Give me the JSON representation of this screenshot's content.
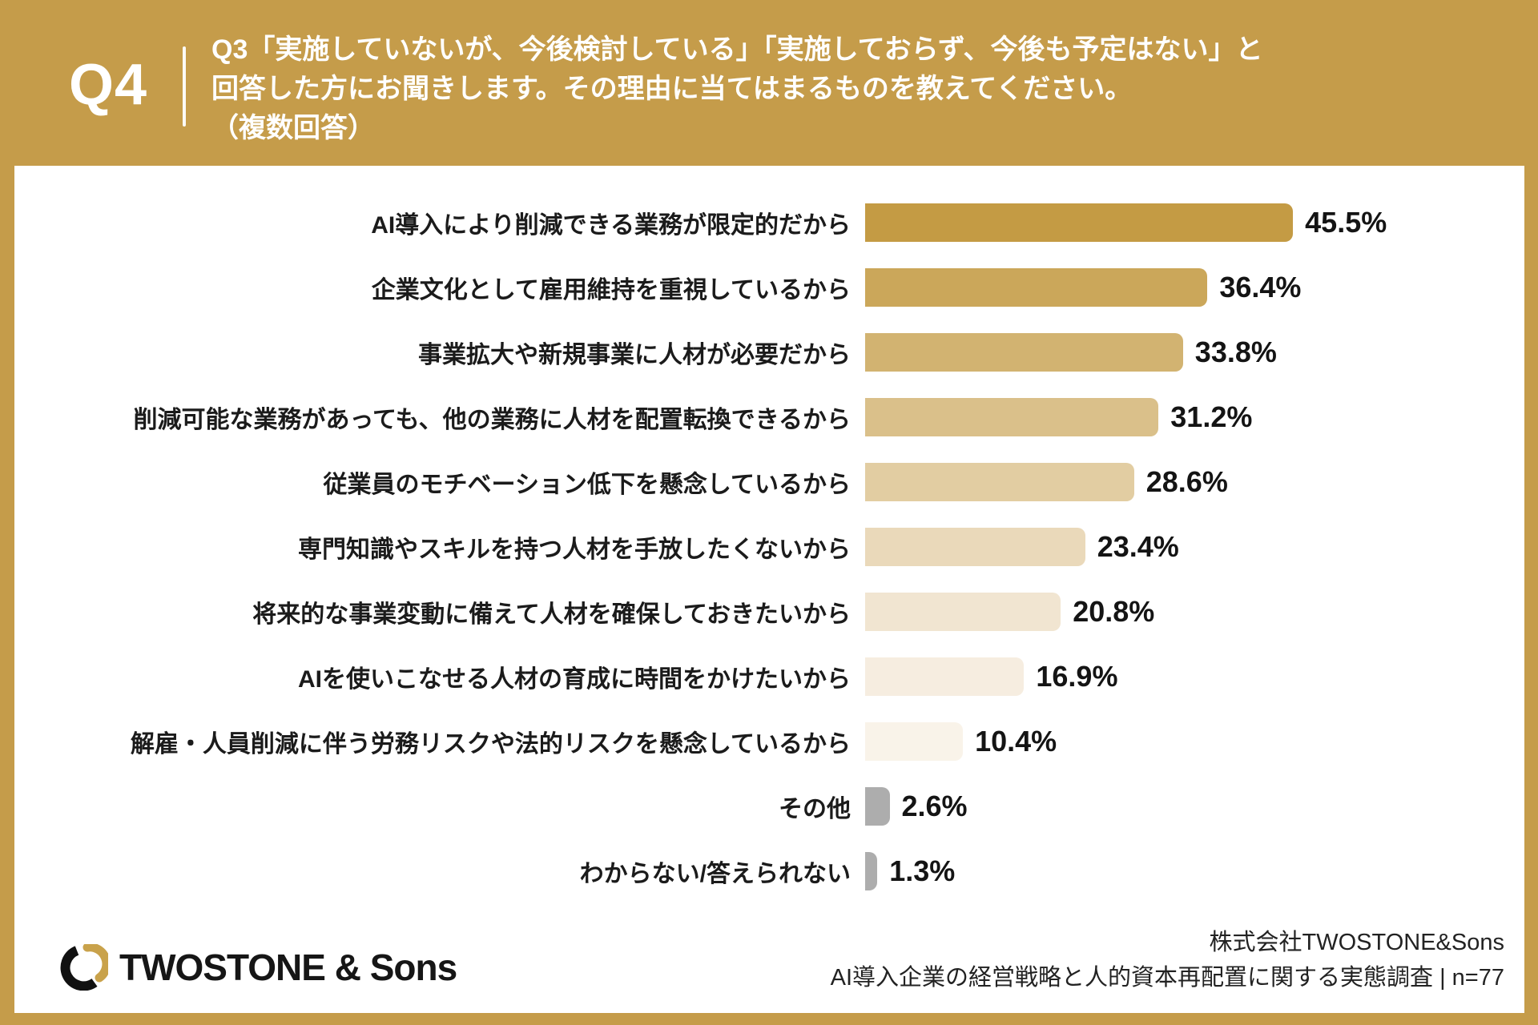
{
  "header": {
    "question_number": "Q4",
    "question_line1": "Q3「実施していないが、今後検討している」「実施しておらず、今後も予定はない」と",
    "question_line2": "回答した方にお聞きします。その理由に当てはまるものを教えてください。",
    "question_line3": "（複数回答）"
  },
  "chart_data": {
    "type": "bar",
    "orientation": "horizontal",
    "title": "Q3「実施していないが、今後検討している」「実施しておらず、今後も予定はない」と回答した方にお聞きします。その理由に当てはまるものを教えてください。（複数回答）",
    "unit": "%",
    "xlim": [
      0,
      70
    ],
    "grid": false,
    "legend": "none",
    "categories": [
      "AI導入により削減できる業務が限定的だから",
      "企業文化として雇用維持を重視しているから",
      "事業拡大や新規事業に人材が必要だから",
      "削減可能な業務があっても、他の業務に人材を配置転換できるから",
      "従業員のモチベーション低下を懸念しているから",
      "専門知識やスキルを持つ人材を手放したくないから",
      "将来的な事業変動に備えて人材を確保しておきたいから",
      "AIを使いこなせる人材の育成に時間をかけたいから",
      "解雇・人員削減に伴う労務リスクや法的リスクを懸念しているから",
      "その他",
      "わからない/答えられない"
    ],
    "values": [
      45.5,
      36.4,
      33.8,
      31.2,
      28.6,
      23.4,
      20.8,
      16.9,
      10.4,
      2.6,
      1.3
    ],
    "value_labels": [
      "45.5%",
      "36.4%",
      "33.8%",
      "31.2%",
      "28.6%",
      "23.4%",
      "20.8%",
      "16.9%",
      "10.4%",
      "2.6%",
      "1.3%"
    ],
    "bar_colors": [
      "#C49B44",
      "#CBA75A",
      "#D2B371",
      "#DAC08A",
      "#E2CDA2",
      "#EAD9BA",
      "#F1E5D1",
      "#F6EDE0",
      "#F9F3E9",
      "#ADADAD",
      "#ADADAD"
    ]
  },
  "footer": {
    "logo_text": "TWOSTONE & Sons",
    "source_line1": "株式会社TWOSTONE&Sons",
    "source_line2": "AI導入企業の経営戦略と人的資本再配置に関する実態調査 | n=77"
  },
  "colors": {
    "background_gold": "#C59C4A",
    "card_white": "#FFFFFF",
    "text_black": "#1B1B1B",
    "header_text_white": "#FFFFFF",
    "other_bar_gray": "#ADADAD",
    "logo_gold": "#C9A24B",
    "logo_black": "#111111"
  }
}
